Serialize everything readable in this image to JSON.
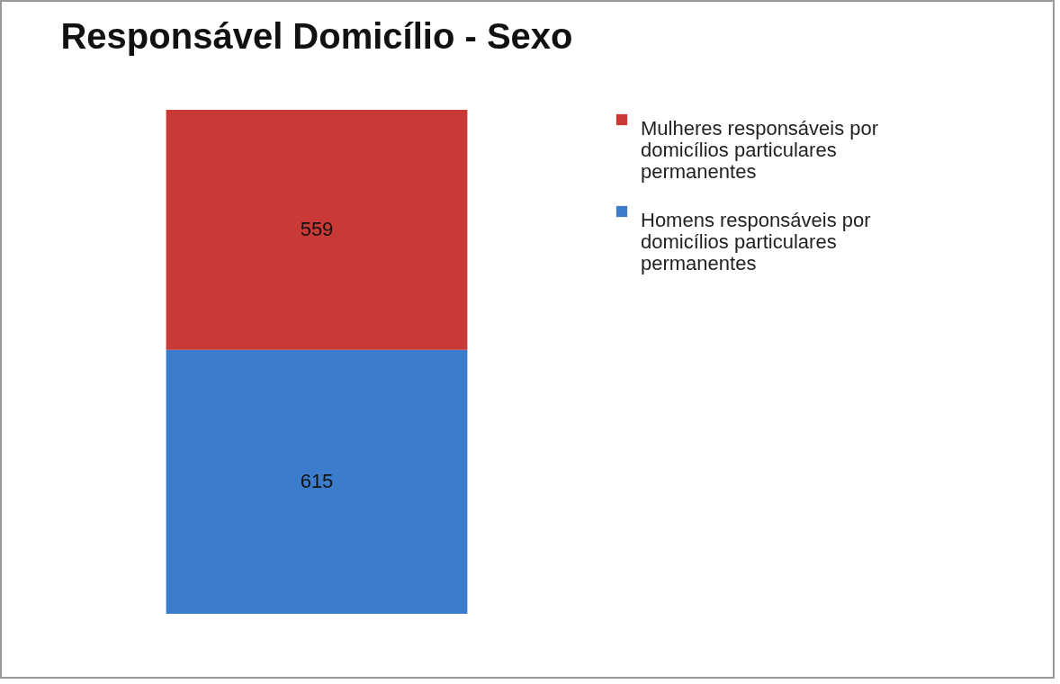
{
  "chart_data": {
    "type": "bar",
    "title": "Responsável Domicílio - Sexo",
    "categories": [
      null
    ],
    "stacked": true,
    "data_labels": true,
    "legend": "right",
    "series": [
      {
        "name": "Homens responsáveis por domicílios particulares permanentes",
        "color": "#3b7ccc",
        "values": [
          615
        ]
      },
      {
        "name": "Mulheres responsáveis por domicílios particulares permanentes",
        "color": "#c93a36",
        "values": [
          559
        ]
      }
    ]
  }
}
